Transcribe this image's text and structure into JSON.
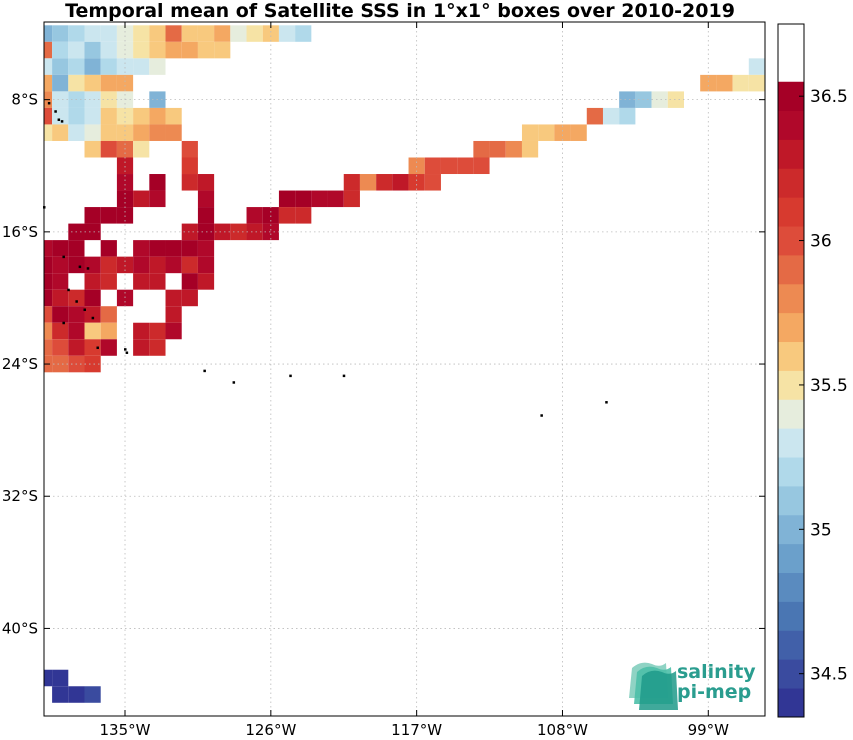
{
  "title": "Temporal mean of Satellite SSS in 1°x1° boxes over 2010-2019",
  "logo": {
    "line1": "salinity",
    "line2": "pi-mep"
  },
  "chart_data": {
    "type": "heatmap",
    "title": "Temporal mean of Satellite SSS in 1°x1° boxes over 2010-2019",
    "x_ticks": [
      {
        "value": -135,
        "label": "135°W"
      },
      {
        "value": -126,
        "label": "126°W"
      },
      {
        "value": -117,
        "label": "117°W"
      },
      {
        "value": -108,
        "label": "108°W"
      },
      {
        "value": -99,
        "label": "99°W"
      }
    ],
    "y_ticks": [
      {
        "value": -8,
        "label": "8°S"
      },
      {
        "value": -16,
        "label": "16°S"
      },
      {
        "value": -24,
        "label": "24°S"
      },
      {
        "value": -32,
        "label": "32°S"
      },
      {
        "value": -40,
        "label": "40°S"
      }
    ],
    "xlim": [
      -140.0,
      -95.5
    ],
    "ylim": [
      -45.3,
      -3.3
    ],
    "colorbar": {
      "range": [
        34.35,
        36.75
      ],
      "step": 0.1,
      "ticks": [
        34.5,
        35,
        35.5,
        36,
        36.5
      ],
      "tick_labels": [
        "34.5",
        "35",
        "35.5",
        "36",
        "36.5"
      ],
      "colors": [
        "#313695",
        "#3a4b9f",
        "#4160a9",
        "#4a76b3",
        "#5a8bbf",
        "#6ba0cb",
        "#80b3d6",
        "#97c7e0",
        "#b0d9ea",
        "#cbe6ef",
        "#e6eddd",
        "#f6e3a5",
        "#f8c97e",
        "#f4a862",
        "#ed8a52",
        "#e46a45",
        "#dd4c3a",
        "#d73a2f",
        "#cc2a2b",
        "#bf1828",
        "#b0082a",
        "#a50026"
      ]
    },
    "rows": [
      {
        "lat": -4,
        "cells": [
          [
            -140,
            35.0
          ],
          [
            -139,
            35.1
          ],
          [
            -138,
            35.2
          ],
          [
            -137,
            35.3
          ],
          [
            -136,
            35.3
          ],
          [
            -135,
            35.4
          ],
          [
            -134,
            35.5
          ],
          [
            -133,
            35.6
          ],
          [
            -132,
            35.9
          ],
          [
            -131,
            35.6
          ],
          [
            -130,
            35.6
          ],
          [
            -129,
            35.7
          ],
          [
            -128,
            35.4
          ],
          [
            -127,
            35.5
          ],
          [
            -126,
            35.6
          ],
          [
            -125,
            35.3
          ],
          [
            -124,
            35.2
          ]
        ]
      },
      {
        "lat": -5,
        "cells": [
          [
            -140,
            35.9
          ],
          [
            -139,
            35.2
          ],
          [
            -138,
            35.3
          ],
          [
            -137,
            35.1
          ],
          [
            -136,
            35.3
          ],
          [
            -135,
            35.4
          ],
          [
            -134,
            35.5
          ],
          [
            -133,
            35.6
          ],
          [
            -132,
            35.7
          ],
          [
            -131,
            35.7
          ],
          [
            -130,
            35.6
          ],
          [
            -129,
            35.6
          ]
        ]
      },
      {
        "lat": -6,
        "cells": [
          [
            -140,
            35.3
          ],
          [
            -139,
            35.1
          ],
          [
            -138,
            35.2
          ],
          [
            -137,
            35.0
          ],
          [
            -136,
            35.2
          ],
          [
            -135,
            35.3
          ],
          [
            -134,
            35.3
          ],
          [
            -133,
            35.4
          ],
          [
            -96,
            35.3
          ]
        ]
      },
      {
        "lat": -7,
        "cells": [
          [
            -140,
            35.7
          ],
          [
            -139,
            35.0
          ],
          [
            -138,
            35.5
          ],
          [
            -137,
            35.6
          ],
          [
            -136,
            35.7
          ],
          [
            -135,
            35.7
          ],
          [
            -99,
            35.7
          ],
          [
            -98,
            35.7
          ],
          [
            -97,
            35.5
          ],
          [
            -96,
            35.5
          ]
        ]
      },
      {
        "lat": -8,
        "cells": [
          [
            -140,
            35.8
          ],
          [
            -139,
            35.3
          ],
          [
            -138,
            35.2
          ],
          [
            -137,
            35.3
          ],
          [
            -136,
            35.5
          ],
          [
            -135,
            35.4
          ],
          [
            -133,
            35.0
          ],
          [
            -104,
            35.0
          ],
          [
            -103,
            35.1
          ],
          [
            -102,
            35.4
          ],
          [
            -101,
            35.5
          ]
        ]
      },
      {
        "lat": -9,
        "cells": [
          [
            -140,
            36.0
          ],
          [
            -139,
            35.3
          ],
          [
            -138,
            35.2
          ],
          [
            -137,
            35.3
          ],
          [
            -136,
            35.6
          ],
          [
            -135,
            35.5
          ],
          [
            -134,
            35.6
          ],
          [
            -133,
            35.7
          ],
          [
            -132,
            35.6
          ],
          [
            -106,
            35.9
          ],
          [
            -105,
            35.3
          ],
          [
            -104,
            35.2
          ]
        ]
      },
      {
        "lat": -10,
        "cells": [
          [
            -140,
            35.5
          ],
          [
            -139,
            35.6
          ],
          [
            -138,
            35.3
          ],
          [
            -137,
            35.4
          ],
          [
            -136,
            35.6
          ],
          [
            -135,
            35.6
          ],
          [
            -134,
            35.7
          ],
          [
            -133,
            35.8
          ],
          [
            -132,
            35.8
          ],
          [
            -110,
            35.6
          ],
          [
            -109,
            35.6
          ],
          [
            -108,
            35.7
          ],
          [
            -107,
            35.7
          ]
        ]
      },
      {
        "lat": -11,
        "cells": [
          [
            -137,
            35.6
          ],
          [
            -136,
            36.0
          ],
          [
            -135,
            35.9
          ],
          [
            -134,
            35.5
          ],
          [
            -131,
            36.0
          ],
          [
            -113,
            35.9
          ],
          [
            -112,
            35.9
          ],
          [
            -111,
            35.8
          ],
          [
            -110,
            35.6
          ]
        ]
      },
      {
        "lat": -12,
        "cells": [
          [
            -135,
            36.3
          ],
          [
            -131,
            36.1
          ],
          [
            -117,
            35.8
          ],
          [
            -116,
            36.0
          ],
          [
            -115,
            36.0
          ],
          [
            -114,
            36.0
          ],
          [
            -113,
            36.0
          ]
        ]
      },
      {
        "lat": -13,
        "cells": [
          [
            -135,
            36.4
          ],
          [
            -133,
            36.6
          ],
          [
            -131,
            36.2
          ],
          [
            -130,
            36.3
          ],
          [
            -121,
            36.2
          ],
          [
            -120,
            35.8
          ],
          [
            -119,
            36.2
          ],
          [
            -118,
            36.3
          ],
          [
            -117,
            36.1
          ],
          [
            -116,
            36.0
          ]
        ]
      },
      {
        "lat": -14,
        "cells": [
          [
            -135,
            36.5
          ],
          [
            -134,
            36.3
          ],
          [
            -133,
            36.4
          ],
          [
            -130,
            36.4
          ],
          [
            -125,
            36.6
          ],
          [
            -124,
            36.6
          ],
          [
            -123,
            36.4
          ],
          [
            -122,
            36.4
          ],
          [
            -121,
            36.2
          ]
        ]
      },
      {
        "lat": -15,
        "cells": [
          [
            -137,
            36.6
          ],
          [
            -136,
            36.6
          ],
          [
            -135,
            36.6
          ],
          [
            -130,
            36.5
          ],
          [
            -127,
            36.4
          ],
          [
            -126,
            36.6
          ],
          [
            -125,
            36.2
          ],
          [
            -124,
            36.2
          ]
        ]
      },
      {
        "lat": -16,
        "cells": [
          [
            -138,
            36.6
          ],
          [
            -137,
            36.6
          ],
          [
            -131,
            36.3
          ],
          [
            -130,
            36.5
          ],
          [
            -129,
            36.3
          ],
          [
            -128,
            36.2
          ],
          [
            -127,
            36.3
          ],
          [
            -126,
            36.4
          ]
        ]
      },
      {
        "lat": -17,
        "cells": [
          [
            -140,
            36.4
          ],
          [
            -139,
            36.5
          ],
          [
            -138,
            36.6
          ],
          [
            -136,
            36.6
          ],
          [
            -134,
            36.4
          ],
          [
            -133,
            36.5
          ],
          [
            -132,
            36.5
          ],
          [
            -131,
            36.6
          ],
          [
            -130,
            36.4
          ]
        ]
      },
      {
        "lat": -18,
        "cells": [
          [
            -140,
            36.5
          ],
          [
            -139,
            36.4
          ],
          [
            -138,
            36.5
          ],
          [
            -137,
            36.4
          ],
          [
            -136,
            36.2
          ],
          [
            -135,
            36.3
          ],
          [
            -134,
            36.4
          ],
          [
            -133,
            36.3
          ],
          [
            -132,
            36.4
          ],
          [
            -131,
            36.2
          ],
          [
            -130,
            36.4
          ]
        ]
      },
      {
        "lat": -19,
        "cells": [
          [
            -140,
            36.5
          ],
          [
            -139,
            36.4
          ],
          [
            -137,
            36.3
          ],
          [
            -136,
            36.2
          ],
          [
            -134,
            36.3
          ],
          [
            -133,
            36.3
          ],
          [
            -131,
            36.5
          ],
          [
            -130,
            36.3
          ]
        ]
      },
      {
        "lat": -20,
        "cells": [
          [
            -140,
            36.5
          ],
          [
            -139,
            36.3
          ],
          [
            -138,
            36.2
          ],
          [
            -137,
            36.5
          ],
          [
            -135,
            36.4
          ],
          [
            -132,
            36.3
          ],
          [
            -131,
            36.3
          ]
        ]
      },
      {
        "lat": -21,
        "cells": [
          [
            -140,
            36.0
          ],
          [
            -139,
            36.5
          ],
          [
            -138,
            36.4
          ],
          [
            -137,
            36.3
          ],
          [
            -136,
            35.9
          ],
          [
            -132,
            36.3
          ]
        ]
      },
      {
        "lat": -22,
        "cells": [
          [
            -140,
            35.8
          ],
          [
            -139,
            36.2
          ],
          [
            -138,
            36.4
          ],
          [
            -137,
            35.6
          ],
          [
            -136,
            35.7
          ],
          [
            -134,
            36.3
          ],
          [
            -133,
            36.2
          ],
          [
            -132,
            36.4
          ]
        ]
      },
      {
        "lat": -23,
        "cells": [
          [
            -140,
            35.9
          ],
          [
            -139,
            36.0
          ],
          [
            -138,
            36.3
          ],
          [
            -137,
            36.1
          ],
          [
            -136,
            36.4
          ],
          [
            -134,
            36.3
          ],
          [
            -133,
            36.2
          ]
        ]
      },
      {
        "lat": -24,
        "cells": [
          [
            -140,
            35.9
          ],
          [
            -139,
            35.9
          ],
          [
            -138,
            36.0
          ],
          [
            -137,
            36.1
          ]
        ]
      },
      {
        "lat": -43,
        "cells": [
          [
            -140,
            34.4
          ],
          [
            -139,
            34.4
          ]
        ]
      },
      {
        "lat": -44,
        "cells": [
          [
            -139,
            34.4
          ],
          [
            -138,
            34.4
          ],
          [
            -137,
            34.5
          ]
        ]
      }
    ],
    "islands": [
      [
        -139.3,
        -8.7
      ],
      [
        -139.1,
        -9.2
      ],
      [
        -138.9,
        -9.3
      ],
      [
        -139.7,
        -8.2
      ],
      [
        -140.0,
        -14.5
      ],
      [
        -138.8,
        -17.5
      ],
      [
        -137.8,
        -18.1
      ],
      [
        -137.3,
        -18.2
      ],
      [
        -138.5,
        -19.5
      ],
      [
        -138.0,
        -20.2
      ],
      [
        -137.5,
        -20.7
      ],
      [
        -137.0,
        -21.2
      ],
      [
        -138.8,
        -21.5
      ],
      [
        -136.7,
        -23.0
      ],
      [
        -135.0,
        -23.1
      ],
      [
        -134.9,
        -23.3
      ],
      [
        -130.1,
        -24.4
      ],
      [
        -128.3,
        -25.1
      ],
      [
        -124.8,
        -24.7
      ],
      [
        -121.5,
        -24.7
      ],
      [
        -109.3,
        -27.1
      ],
      [
        -105.3,
        -26.3
      ]
    ]
  }
}
